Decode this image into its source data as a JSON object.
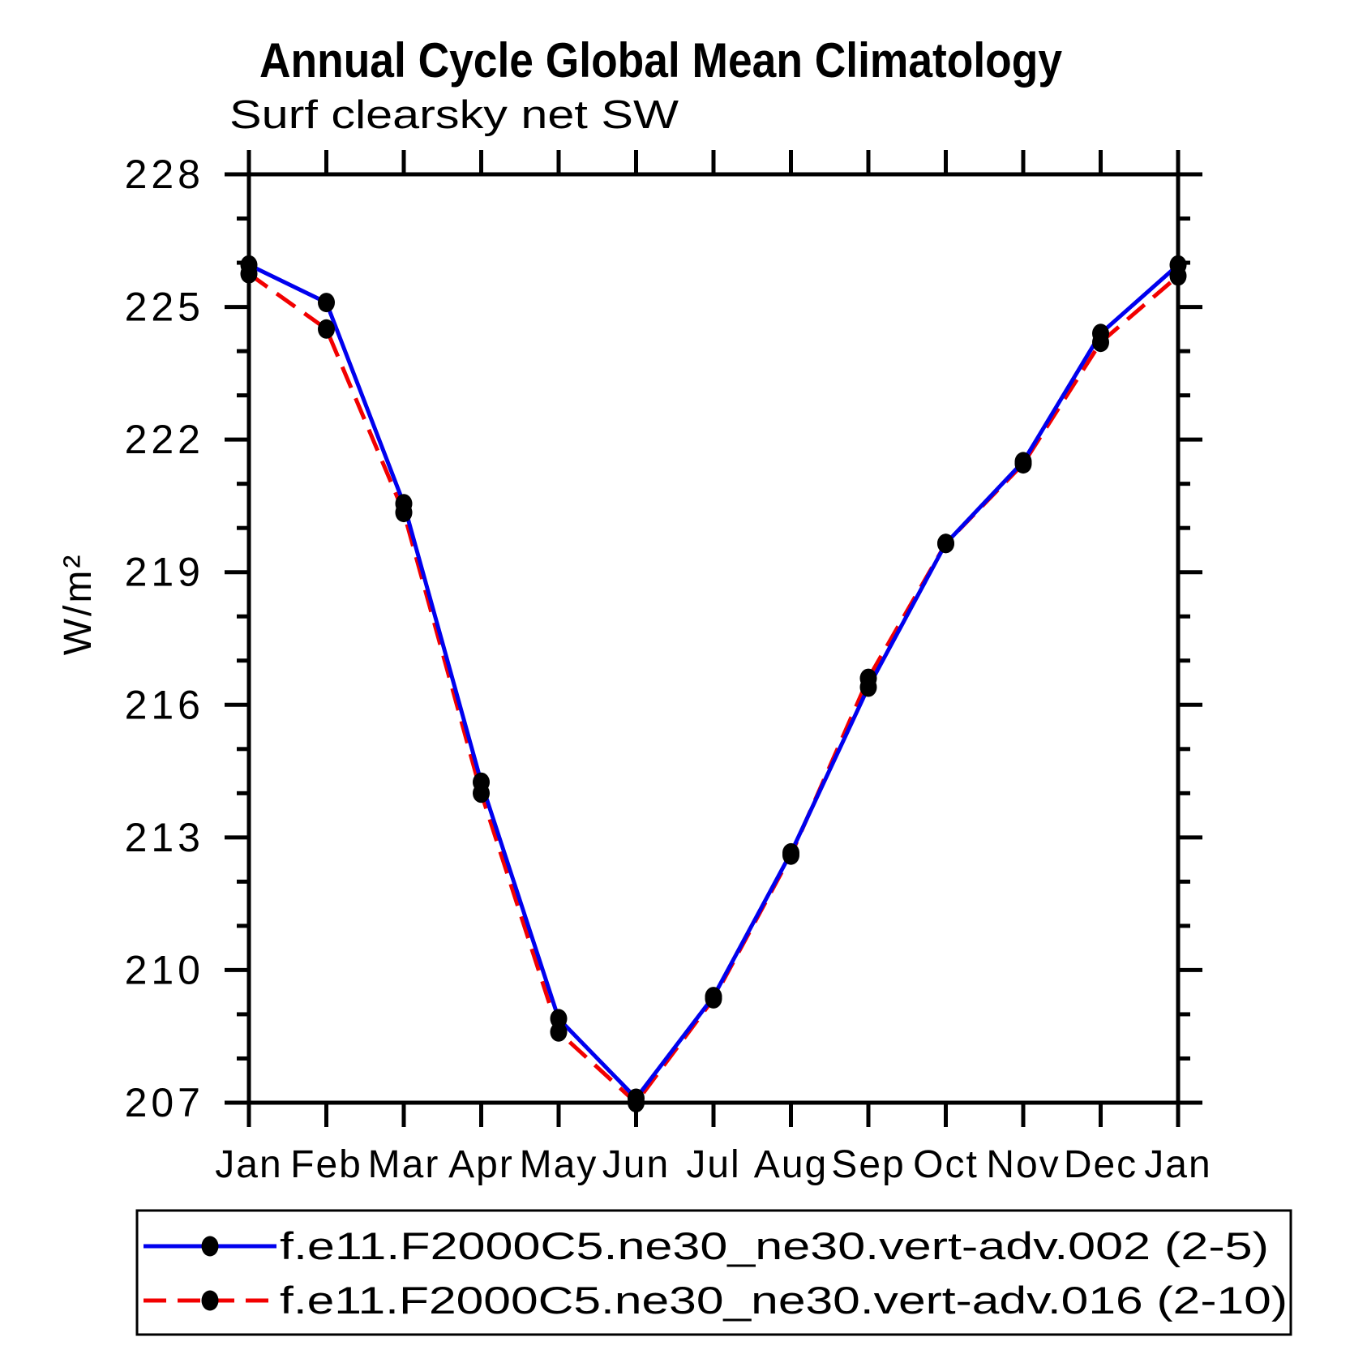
{
  "title": "Annual Cycle Global Mean Climatology",
  "subtitle": "Surf clearsky net SW",
  "chart_data": {
    "type": "line",
    "title": "Annual Cycle Global Mean Climatology",
    "subtitle": "Surf clearsky net SW",
    "ylabel": "W/m²",
    "xlabel": "",
    "ylim": [
      207,
      228
    ],
    "ytick_major_step": 3,
    "ytick_minor_step": 1,
    "ytick_major_labels": [
      "207",
      "210",
      "213",
      "216",
      "219",
      "222",
      "225",
      "228"
    ],
    "grid": "off",
    "legend_position": "below-plot",
    "x_categories": [
      "Jan",
      "Feb",
      "Mar",
      "Apr",
      "May",
      "Jun",
      "Jul",
      "Aug",
      "Sep",
      "Oct",
      "Nov",
      "Dec",
      "Jan"
    ],
    "series": [
      {
        "name": "f.e11.F2000C5.ne30_ne30.vert-adv.002 (2-5)",
        "color": "#0000ee",
        "line_style": "solid",
        "marker": "filled-circle",
        "marker_color": "#000000",
        "values": [
          225.95,
          225.1,
          220.55,
          214.25,
          208.9,
          207.1,
          209.4,
          212.65,
          216.4,
          219.65,
          221.5,
          224.4,
          225.95
        ]
      },
      {
        "name": "f.e11.F2000C5.ne30_ne30.vert-adv.016 (2-10)",
        "color": "#f20000",
        "line_style": "dashed",
        "marker": "filled-circle",
        "marker_color": "#000000",
        "values": [
          225.75,
          224.5,
          220.35,
          214.0,
          208.6,
          207.0,
          209.35,
          212.6,
          216.6,
          219.65,
          221.45,
          224.2,
          225.7
        ]
      }
    ]
  }
}
